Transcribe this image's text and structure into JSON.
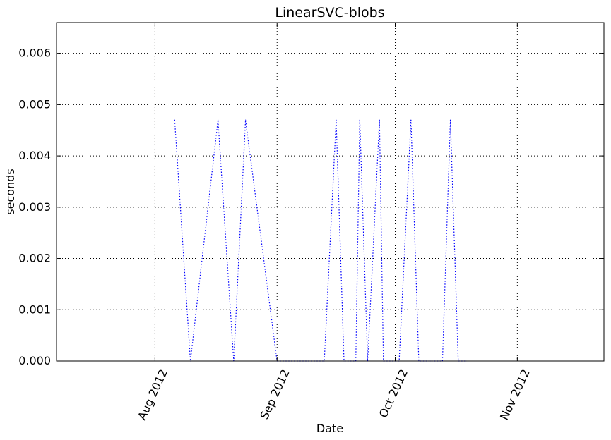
{
  "chart_data": {
    "type": "line",
    "title": "LinearSVC-blobs",
    "xlabel": "Date",
    "ylabel": "seconds",
    "xlim": [
      "2012-07-07",
      "2012-11-23"
    ],
    "ylim": [
      0,
      0.0066
    ],
    "grid": true,
    "x_ticks": [
      {
        "date": "2012-08-01",
        "label": "Aug 2012"
      },
      {
        "date": "2012-09-01",
        "label": "Sep 2012"
      },
      {
        "date": "2012-10-01",
        "label": "Oct 2012"
      },
      {
        "date": "2012-11-01",
        "label": "Nov 2012"
      }
    ],
    "y_ticks": [
      {
        "value": 0,
        "label": "0.000"
      },
      {
        "value": 0.001,
        "label": "0.001"
      },
      {
        "value": 0.002,
        "label": "0.002"
      },
      {
        "value": 0.003,
        "label": "0.003"
      },
      {
        "value": 0.004,
        "label": "0.004"
      },
      {
        "value": 0.005,
        "label": "0.005"
      },
      {
        "value": 0.006,
        "label": "0.006"
      }
    ],
    "series": [
      {
        "color": "#0000ff",
        "line_style": "dotted",
        "x": [
          "2012-08-06",
          "2012-08-10",
          "2012-08-17",
          "2012-08-21",
          "2012-08-24",
          "2012-09-01",
          "2012-09-13",
          "2012-09-16",
          "2012-09-18",
          "2012-09-21",
          "2012-09-22",
          "2012-09-24",
          "2012-09-27",
          "2012-09-28",
          "2012-10-01",
          "2012-10-02",
          "2012-10-05",
          "2012-10-07",
          "2012-10-10",
          "2012-10-13",
          "2012-10-15",
          "2012-10-17",
          "2012-10-19"
        ],
        "y": [
          0.0047,
          0.0,
          0.0047,
          0.0,
          0.0047,
          0.0,
          0.0,
          0.0047,
          0.0,
          0.0,
          0.0047,
          0.0,
          0.0047,
          0.0,
          0.0,
          0.0,
          0.0047,
          0.0,
          0.0,
          0.0,
          0.0047,
          0.0,
          0.0
        ]
      }
    ]
  }
}
